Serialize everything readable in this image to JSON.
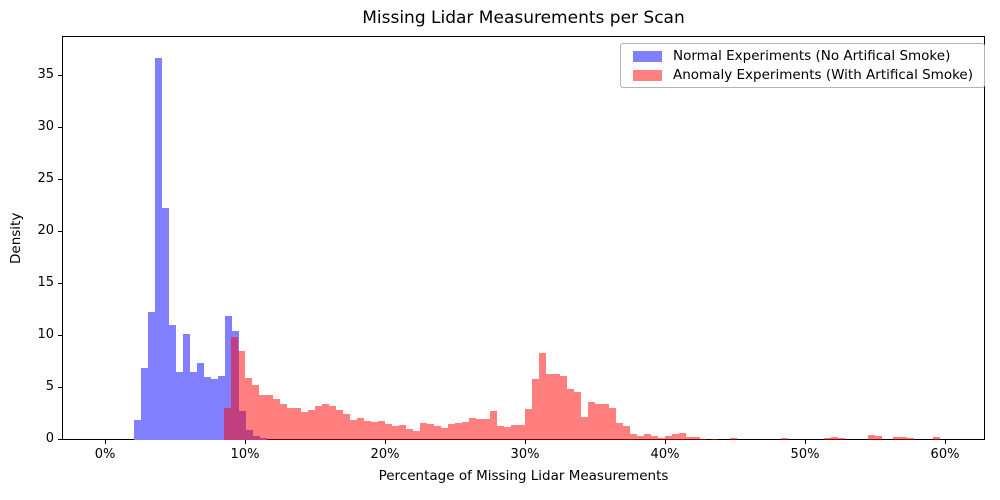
{
  "title": "Missing Lidar Measurements per Scan",
  "axes": {
    "xlabel": "Percentage of Missing Lidar Measurements",
    "ylabel": "Density",
    "x_ticks": [
      {
        "label": "0%",
        "pct": 0
      },
      {
        "label": "10%",
        "pct": 10
      },
      {
        "label": "20%",
        "pct": 20
      },
      {
        "label": "30%",
        "pct": 30
      },
      {
        "label": "40%",
        "pct": 40
      },
      {
        "label": "50%",
        "pct": 50
      },
      {
        "label": "60%",
        "pct": 60
      }
    ],
    "y_ticks": [
      {
        "label": "0",
        "value": 0
      },
      {
        "label": "5",
        "value": 5
      },
      {
        "label": "10",
        "value": 10
      },
      {
        "label": "15",
        "value": 15
      },
      {
        "label": "20",
        "value": 20
      },
      {
        "label": "25",
        "value": 25
      },
      {
        "label": "30",
        "value": 30
      },
      {
        "label": "35",
        "value": 35
      }
    ]
  },
  "legend": {
    "items": [
      {
        "label": "Normal Experiments (No Artifical Smoke)",
        "color": "#8080FF"
      },
      {
        "label": "Anomaly Experiments (With Artifical Smoke)",
        "color": "#FF8080"
      }
    ]
  },
  "colors": {
    "normal_fill": "#8080FF",
    "anomaly_fill": "rgba(255,0,0,0.5)",
    "overlap_observed": "#BF4080",
    "spine": "#000000",
    "legend_border": "#b3b3b3"
  },
  "chart_data": {
    "type": "bar",
    "subtype": "overlaid density histograms",
    "title": "Missing Lidar Measurements per Scan",
    "xlabel": "Percentage of Missing Lidar Measurements",
    "ylabel": "Density",
    "ylim": [
      0,
      38.75
    ],
    "xlim_pct": [
      -3.07,
      62.86
    ],
    "grid": false,
    "legend_position": "upper right",
    "bin_width_pct": 0.5,
    "series": [
      {
        "name": "Normal Experiments (No Artifical Smoke)",
        "start_pct": 2.0,
        "densities": [
          1.9,
          6.9,
          12.3,
          36.7,
          22.3,
          11.1,
          6.5,
          10.2,
          6.5,
          7.4,
          6.1,
          5.9,
          6.2,
          11.9,
          10.5,
          2.8,
          1.0,
          0.4,
          0.15
        ]
      },
      {
        "name": "Anomaly Experiments (With Artifical Smoke)",
        "start_pct": 8.45,
        "densities": [
          3.1,
          9.9,
          8.6,
          6.0,
          5.3,
          4.3,
          4.3,
          3.9,
          3.5,
          3.1,
          3.1,
          2.7,
          2.9,
          3.3,
          3.5,
          3.3,
          2.9,
          2.5,
          1.9,
          2.1,
          1.8,
          1.7,
          1.8,
          1.5,
          1.3,
          1.45,
          1.1,
          0.9,
          1.6,
          1.5,
          1.35,
          1.15,
          1.5,
          1.6,
          1.7,
          2.1,
          2.0,
          2.0,
          2.8,
          1.35,
          1.25,
          1.45,
          1.45,
          3.0,
          5.9,
          8.4,
          6.3,
          6.3,
          6.2,
          4.9,
          4.6,
          2.2,
          3.7,
          3.5,
          3.5,
          3.1,
          1.6,
          1.35,
          0.6,
          0.4,
          0.6,
          0.4,
          0.2,
          0.4,
          0.6,
          0.7,
          0.3,
          0.3,
          0.1
        ],
        "tail_bins": [
          {
            "start_pct": 43.2,
            "density": 0.1
          },
          {
            "start_pct": 44.6,
            "density": 0.15
          },
          {
            "start_pct": 48.2,
            "density": 0.15
          },
          {
            "start_pct": 51.3,
            "density": 0.2
          },
          {
            "start_pct": 51.8,
            "density": 0.25
          },
          {
            "start_pct": 52.3,
            "density": 0.2
          },
          {
            "start_pct": 54.4,
            "density": 0.5
          },
          {
            "start_pct": 54.9,
            "density": 0.35
          },
          {
            "start_pct": 56.2,
            "density": 0.25
          },
          {
            "start_pct": 56.7,
            "density": 0.3
          },
          {
            "start_pct": 57.2,
            "density": 0.2
          },
          {
            "start_pct": 59.1,
            "density": 0.25
          }
        ]
      }
    ]
  }
}
